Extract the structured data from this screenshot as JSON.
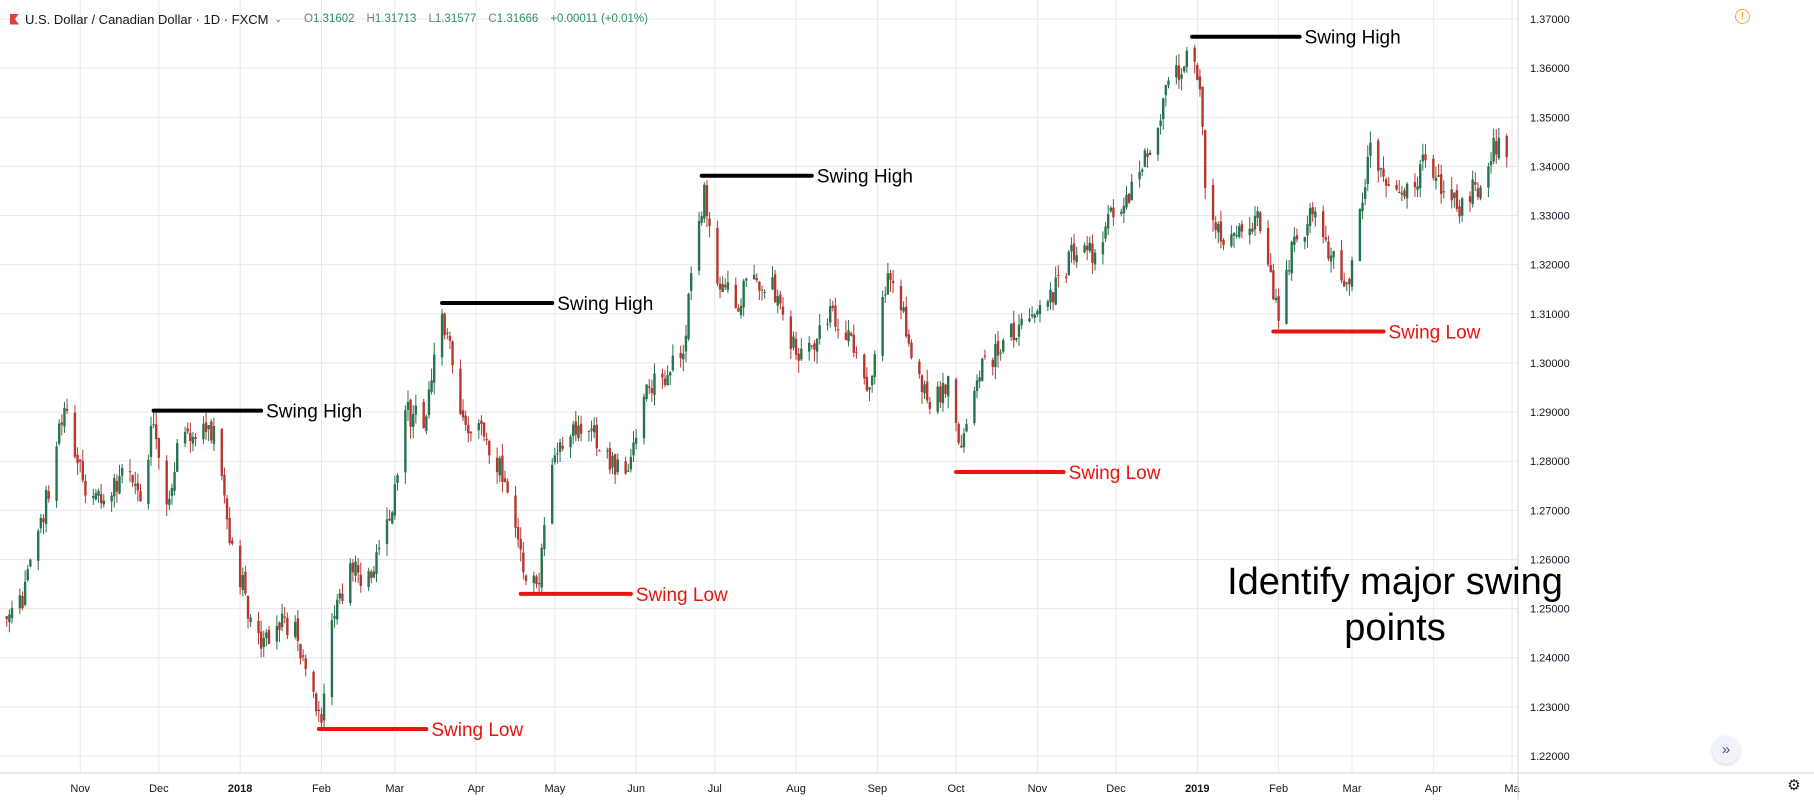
{
  "header": {
    "symbol": "U.S. Dollar / Canadian Dollar · 1D · FXCM",
    "ohlc": [
      {
        "label": "O",
        "value": "1.31602"
      },
      {
        "label": "H",
        "value": "1.31713"
      },
      {
        "label": "L",
        "value": "1.31577"
      },
      {
        "label": "C",
        "value": "1.31666"
      }
    ],
    "change": "+0.00011 (+0.01%)"
  },
  "icons": {
    "alert": "alert-icon",
    "scroll": "scroll-to-realtime-icon",
    "settings": "gear-icon"
  },
  "colors": {
    "up": "#26734d",
    "down": "#b5372f",
    "swing_high": "#000000",
    "swing_low": "#e8150e",
    "grid": "#e8e8e8"
  },
  "chart_data": {
    "type": "candlestick",
    "ylim": [
      1.216,
      1.372
    ],
    "y_ticks": [
      "1.22000",
      "1.23000",
      "1.24000",
      "1.25000",
      "1.26000",
      "1.27000",
      "1.28000",
      "1.29000",
      "1.30000",
      "1.31000",
      "1.32000",
      "1.33000",
      "1.34000",
      "1.35000",
      "1.36000",
      "1.37000"
    ],
    "x_ticks": [
      {
        "label": "Nov",
        "date": "2017-11-01"
      },
      {
        "label": "Dec",
        "date": "2017-12-01"
      },
      {
        "label": "2018",
        "date": "2018-01-01"
      },
      {
        "label": "Feb",
        "date": "2018-02-01"
      },
      {
        "label": "Mar",
        "date": "2018-03-01"
      },
      {
        "label": "Apr",
        "date": "2018-04-01"
      },
      {
        "label": "May",
        "date": "2018-05-01"
      },
      {
        "label": "Jun",
        "date": "2018-06-01"
      },
      {
        "label": "Jul",
        "date": "2018-07-01"
      },
      {
        "label": "Aug",
        "date": "2018-08-01"
      },
      {
        "label": "Sep",
        "date": "2018-09-01"
      },
      {
        "label": "Oct",
        "date": "2018-10-01"
      },
      {
        "label": "Nov",
        "date": "2018-11-01"
      },
      {
        "label": "Dec",
        "date": "2018-12-01"
      },
      {
        "label": "2019",
        "date": "2019-01-01"
      },
      {
        "label": "Feb",
        "date": "2019-02-01"
      },
      {
        "label": "Mar",
        "date": "2019-03-01"
      },
      {
        "label": "Apr",
        "date": "2019-04-01"
      },
      {
        "label": "Ma",
        "date": "2019-05-01"
      }
    ],
    "price_path": [
      [
        "2017-10-04",
        1.248
      ],
      [
        "2017-10-10",
        1.252
      ],
      [
        "2017-10-18",
        1.269
      ],
      [
        "2017-10-25",
        1.288
      ],
      [
        "2017-10-27",
        1.289
      ],
      [
        "2017-11-03",
        1.275
      ],
      [
        "2017-11-10",
        1.272
      ],
      [
        "2017-11-17",
        1.278
      ],
      [
        "2017-11-24",
        1.274
      ],
      [
        "2017-11-29",
        1.288
      ],
      [
        "2017-12-04",
        1.27
      ],
      [
        "2017-12-08",
        1.283
      ],
      [
        "2017-12-15",
        1.285
      ],
      [
        "2017-12-22",
        1.286
      ],
      [
        "2017-12-28",
        1.265
      ],
      [
        "2018-01-05",
        1.248
      ],
      [
        "2018-01-10",
        1.242
      ],
      [
        "2018-01-15",
        1.248
      ],
      [
        "2018-01-22",
        1.245
      ],
      [
        "2018-01-29",
        1.232
      ],
      [
        "2018-02-01",
        1.228
      ],
      [
        "2018-02-05",
        1.248
      ],
      [
        "2018-02-12",
        1.258
      ],
      [
        "2018-02-20",
        1.255
      ],
      [
        "2018-02-28",
        1.272
      ],
      [
        "2018-03-05",
        1.29
      ],
      [
        "2018-03-12",
        1.288
      ],
      [
        "2018-03-19",
        1.308
      ],
      [
        "2018-03-22",
        1.305
      ],
      [
        "2018-03-27",
        1.288
      ],
      [
        "2018-04-03",
        1.286
      ],
      [
        "2018-04-10",
        1.279
      ],
      [
        "2018-04-16",
        1.265
      ],
      [
        "2018-04-20",
        1.258
      ],
      [
        "2018-04-25",
        1.256
      ],
      [
        "2018-05-01",
        1.282
      ],
      [
        "2018-05-08",
        1.285
      ],
      [
        "2018-05-15",
        1.287
      ],
      [
        "2018-05-22",
        1.28
      ],
      [
        "2018-05-29",
        1.278
      ],
      [
        "2018-06-05",
        1.295
      ],
      [
        "2018-06-12",
        1.298
      ],
      [
        "2018-06-18",
        1.3
      ],
      [
        "2018-06-25",
        1.328
      ],
      [
        "2018-06-27",
        1.334
      ],
      [
        "2018-07-02",
        1.318
      ],
      [
        "2018-07-09",
        1.312
      ],
      [
        "2018-07-16",
        1.318
      ],
      [
        "2018-07-23",
        1.315
      ],
      [
        "2018-08-01",
        1.302
      ],
      [
        "2018-08-08",
        1.305
      ],
      [
        "2018-08-15",
        1.31
      ],
      [
        "2018-08-22",
        1.305
      ],
      [
        "2018-08-29",
        1.295
      ],
      [
        "2018-09-04",
        1.315
      ],
      [
        "2018-09-08",
        1.318
      ],
      [
        "2018-09-14",
        1.302
      ],
      [
        "2018-09-21",
        1.292
      ],
      [
        "2018-09-28",
        1.295
      ],
      [
        "2018-10-03",
        1.283
      ],
      [
        "2018-10-10",
        1.298
      ],
      [
        "2018-10-17",
        1.302
      ],
      [
        "2018-10-25",
        1.308
      ],
      [
        "2018-11-01",
        1.31
      ],
      [
        "2018-11-08",
        1.315
      ],
      [
        "2018-11-15",
        1.323
      ],
      [
        "2018-11-22",
        1.322
      ],
      [
        "2018-11-29",
        1.33
      ],
      [
        "2018-12-06",
        1.335
      ],
      [
        "2018-12-13",
        1.342
      ],
      [
        "2018-12-20",
        1.355
      ],
      [
        "2018-12-28",
        1.363
      ],
      [
        "2019-01-02",
        1.358
      ],
      [
        "2019-01-04",
        1.338
      ],
      [
        "2019-01-10",
        1.325
      ],
      [
        "2019-01-17",
        1.327
      ],
      [
        "2019-01-24",
        1.33
      ],
      [
        "2019-01-30",
        1.315
      ],
      [
        "2019-02-01",
        1.31
      ],
      [
        "2019-02-07",
        1.325
      ],
      [
        "2019-02-14",
        1.33
      ],
      [
        "2019-02-21",
        1.322
      ],
      [
        "2019-02-27",
        1.315
      ],
      [
        "2019-03-04",
        1.33
      ],
      [
        "2019-03-08",
        1.344
      ],
      [
        "2019-03-14",
        1.335
      ],
      [
        "2019-03-20",
        1.333
      ],
      [
        "2019-03-28",
        1.34
      ],
      [
        "2019-04-04",
        1.335
      ],
      [
        "2019-04-11",
        1.332
      ],
      [
        "2019-04-18",
        1.336
      ],
      [
        "2019-04-24",
        1.345
      ],
      [
        "2019-04-29",
        1.343
      ]
    ],
    "annotations": [
      {
        "label": "Swing High",
        "kind": "high",
        "level": 1.2903,
        "start": "2017-11-29",
        "end": "2018-01-09"
      },
      {
        "label": "Swing Low",
        "kind": "low",
        "level": 1.2255,
        "start": "2018-01-31",
        "end": "2018-03-13"
      },
      {
        "label": "Swing High",
        "kind": "high",
        "level": 1.3122,
        "start": "2018-03-19",
        "end": "2018-04-30"
      },
      {
        "label": "Swing Low",
        "kind": "low",
        "level": 1.253,
        "start": "2018-04-18",
        "end": "2018-05-30"
      },
      {
        "label": "Swing High",
        "kind": "high",
        "level": 1.3381,
        "start": "2018-06-26",
        "end": "2018-08-07"
      },
      {
        "label": "Swing Low",
        "kind": "low",
        "level": 1.2778,
        "start": "2018-10-01",
        "end": "2018-11-11"
      },
      {
        "label": "Swing High",
        "kind": "high",
        "level": 1.3664,
        "start": "2018-12-30",
        "end": "2019-02-09"
      },
      {
        "label": "Swing Low",
        "kind": "low",
        "level": 1.3064,
        "start": "2019-01-30",
        "end": "2019-03-13"
      }
    ],
    "caption": "Identify major swing points"
  }
}
